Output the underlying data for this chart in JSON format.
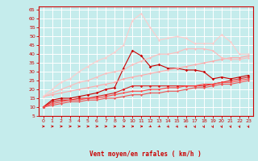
{
  "xlabel": "Vent moyen/en rafales ( km/h )",
  "xlim": [
    -0.5,
    23.5
  ],
  "ylim": [
    5,
    67
  ],
  "yticks": [
    5,
    10,
    15,
    20,
    25,
    30,
    35,
    40,
    45,
    50,
    55,
    60,
    65
  ],
  "xticks": [
    0,
    1,
    2,
    3,
    4,
    5,
    6,
    7,
    8,
    9,
    10,
    11,
    12,
    13,
    14,
    15,
    16,
    17,
    18,
    19,
    20,
    21,
    22,
    23
  ],
  "background_color": "#c5ecec",
  "grid_color": "#ffffff",
  "lines": [
    {
      "x": [
        0,
        1,
        2,
        3,
        4,
        5,
        6,
        7,
        8,
        9,
        10,
        11,
        12,
        13,
        14,
        15,
        16,
        17,
        18,
        19,
        20,
        21,
        22,
        23
      ],
      "y": [
        10,
        14,
        15,
        15,
        16,
        17,
        18,
        20,
        21,
        32,
        42,
        39,
        33,
        34,
        32,
        32,
        31,
        31,
        30,
        26,
        27,
        26,
        27,
        28
      ],
      "color": "#cc0000",
      "lw": 0.8,
      "marker": "D",
      "ms": 1.8
    },
    {
      "x": [
        0,
        1,
        2,
        3,
        4,
        5,
        6,
        7,
        8,
        9,
        10,
        11,
        12,
        13,
        14,
        15,
        16,
        17,
        18,
        19,
        20,
        21,
        22,
        23
      ],
      "y": [
        10,
        13,
        14,
        14,
        15,
        15,
        16,
        17,
        18,
        20,
        22,
        22,
        22,
        22,
        22,
        22,
        22,
        22,
        22,
        23,
        24,
        25,
        26,
        27
      ],
      "color": "#dd2222",
      "lw": 0.8,
      "marker": "D",
      "ms": 1.8
    },
    {
      "x": [
        0,
        1,
        2,
        3,
        4,
        5,
        6,
        7,
        8,
        9,
        10,
        11,
        12,
        13,
        14,
        15,
        16,
        17,
        18,
        19,
        20,
        21,
        22,
        23
      ],
      "y": [
        10,
        12,
        13,
        14,
        14,
        15,
        15,
        16,
        17,
        18,
        19,
        19,
        20,
        20,
        21,
        21,
        22,
        22,
        23,
        23,
        24,
        24,
        25,
        26
      ],
      "color": "#ff4444",
      "lw": 0.8,
      "marker": "D",
      "ms": 1.5
    },
    {
      "x": [
        0,
        1,
        2,
        3,
        4,
        5,
        6,
        7,
        8,
        9,
        10,
        11,
        12,
        13,
        14,
        15,
        16,
        17,
        18,
        19,
        20,
        21,
        22,
        23
      ],
      "y": [
        16,
        17,
        18,
        19,
        20,
        21,
        22,
        23,
        24,
        26,
        27,
        28,
        29,
        30,
        31,
        32,
        33,
        34,
        35,
        36,
        37,
        38,
        38,
        39
      ],
      "color": "#ffaaaa",
      "lw": 0.8,
      "marker": "D",
      "ms": 1.5
    },
    {
      "x": [
        0,
        1,
        2,
        3,
        4,
        5,
        6,
        7,
        8,
        9,
        10,
        11,
        12,
        13,
        14,
        15,
        16,
        17,
        18,
        19,
        20,
        21,
        22,
        23
      ],
      "y": [
        16,
        18,
        20,
        22,
        24,
        25,
        27,
        29,
        30,
        31,
        34,
        36,
        38,
        40,
        40,
        41,
        43,
        43,
        43,
        42,
        38,
        37,
        37,
        38
      ],
      "color": "#ffbbbb",
      "lw": 0.8,
      "marker": "D",
      "ms": 1.5
    },
    {
      "x": [
        0,
        1,
        2,
        3,
        4,
        5,
        6,
        7,
        8,
        9,
        10,
        11,
        12,
        13,
        14,
        15,
        16,
        17,
        18,
        19,
        20,
        21,
        22,
        23
      ],
      "y": [
        16,
        20,
        24,
        26,
        30,
        33,
        36,
        38,
        41,
        45,
        59,
        63,
        55,
        48,
        49,
        50,
        49,
        46,
        46,
        46,
        51,
        47,
        40,
        40
      ],
      "color": "#ffcccc",
      "lw": 0.8,
      "marker": "D",
      "ms": 1.5
    },
    {
      "x": [
        0,
        1,
        2,
        3,
        4,
        5,
        6,
        7,
        8,
        9,
        10,
        11,
        12,
        13,
        14,
        15,
        16,
        17,
        18,
        19,
        20,
        21,
        22,
        23
      ],
      "y": [
        10,
        11,
        12,
        13,
        13,
        14,
        14,
        15,
        15,
        16,
        17,
        17,
        18,
        18,
        19,
        19,
        20,
        21,
        21,
        22,
        23,
        23,
        24,
        25
      ],
      "color": "#ee5555",
      "lw": 0.8,
      "marker": "D",
      "ms": 1.5
    }
  ],
  "arrow_directions": [
    0,
    0,
    0,
    0,
    0,
    0,
    0,
    0,
    0,
    0,
    0,
    0,
    -30,
    -30,
    -45,
    -45,
    -45,
    -60,
    -60,
    -60,
    -60,
    -60,
    -60,
    -60
  ],
  "arrow_color": "#cc0000",
  "hline_y": 5,
  "hline_color": "#cc0000"
}
